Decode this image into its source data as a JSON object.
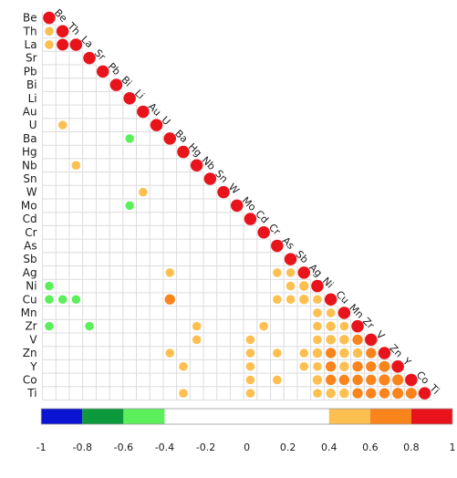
{
  "chart_data": {
    "type": "heatmap",
    "subtype": "correlogram-lower-triangle",
    "title": "",
    "variables": [
      "Be",
      "Th",
      "La",
      "Sr",
      "Pb",
      "Bi",
      "Li",
      "Au",
      "U",
      "Ba",
      "Hg",
      "Nb",
      "Sn",
      "W",
      "Mo",
      "Cd",
      "Cr",
      "As",
      "Sb",
      "Ag",
      "Ni",
      "Cu",
      "Mn",
      "Zr",
      "V",
      "Zn",
      "Y",
      "Co",
      "Ti"
    ],
    "correlations": [
      {
        "row": "Th",
        "col": "Be",
        "r": 0.5
      },
      {
        "row": "La",
        "col": "Be",
        "r": 0.5
      },
      {
        "row": "La",
        "col": "Th",
        "r": 0.9
      },
      {
        "row": "U",
        "col": "Th",
        "r": 0.5
      },
      {
        "row": "Ba",
        "col": "Li",
        "r": -0.5
      },
      {
        "row": "Nb",
        "col": "La",
        "r": 0.5
      },
      {
        "row": "W",
        "col": "Au",
        "r": 0.5
      },
      {
        "row": "Mo",
        "col": "Li",
        "r": -0.5
      },
      {
        "row": "Ag",
        "col": "Ba",
        "r": 0.5
      },
      {
        "row": "Ag",
        "col": "As",
        "r": 0.5
      },
      {
        "row": "Ag",
        "col": "Sb",
        "r": 0.5
      },
      {
        "row": "Ni",
        "col": "Be",
        "r": -0.5
      },
      {
        "row": "Ni",
        "col": "Sb",
        "r": 0.5
      },
      {
        "row": "Ni",
        "col": "Ag",
        "r": 0.6
      },
      {
        "row": "Cu",
        "col": "Be",
        "r": -0.5
      },
      {
        "row": "Cu",
        "col": "Th",
        "r": -0.5
      },
      {
        "row": "Cu",
        "col": "La",
        "r": -0.5
      },
      {
        "row": "Cu",
        "col": "Ba",
        "r": 0.7
      },
      {
        "row": "Cu",
        "col": "As",
        "r": 0.5
      },
      {
        "row": "Cu",
        "col": "Sb",
        "r": 0.5
      },
      {
        "row": "Cu",
        "col": "Ag",
        "r": 0.6
      },
      {
        "row": "Cu",
        "col": "Ni",
        "r": 0.5
      },
      {
        "row": "Mn",
        "col": "Ni",
        "r": 0.5
      },
      {
        "row": "Mn",
        "col": "Cu",
        "r": 0.5
      },
      {
        "row": "Zr",
        "col": "Be",
        "r": -0.5
      },
      {
        "row": "Zr",
        "col": "Sr",
        "r": -0.5
      },
      {
        "row": "Zr",
        "col": "Nb",
        "r": 0.5
      },
      {
        "row": "Zr",
        "col": "Cr",
        "r": 0.5
      },
      {
        "row": "Zr",
        "col": "Ni",
        "r": 0.5
      },
      {
        "row": "Zr",
        "col": "Cu",
        "r": 0.6
      },
      {
        "row": "Zr",
        "col": "Mn",
        "r": 0.5
      },
      {
        "row": "V",
        "col": "Nb",
        "r": 0.5
      },
      {
        "row": "V",
        "col": "Cd",
        "r": 0.5
      },
      {
        "row": "V",
        "col": "Ni",
        "r": 0.5
      },
      {
        "row": "V",
        "col": "Cu",
        "r": 0.6
      },
      {
        "row": "V",
        "col": "Mn",
        "r": 0.6
      },
      {
        "row": "V",
        "col": "Zr",
        "r": 0.7
      },
      {
        "row": "Zn",
        "col": "Ba",
        "r": 0.5
      },
      {
        "row": "Zn",
        "col": "Cd",
        "r": 0.5
      },
      {
        "row": "Zn",
        "col": "As",
        "r": 0.5
      },
      {
        "row": "Zn",
        "col": "Ag",
        "r": 0.5
      },
      {
        "row": "Zn",
        "col": "Ni",
        "r": 0.6
      },
      {
        "row": "Zn",
        "col": "Cu",
        "r": 0.7
      },
      {
        "row": "Zn",
        "col": "Mn",
        "r": 0.6
      },
      {
        "row": "Zn",
        "col": "Zr",
        "r": 0.6
      },
      {
        "row": "Zn",
        "col": "V",
        "r": 0.7
      },
      {
        "row": "Y",
        "col": "Hg",
        "r": 0.5
      },
      {
        "row": "Y",
        "col": "Cd",
        "r": 0.5
      },
      {
        "row": "Y",
        "col": "Ag",
        "r": 0.5
      },
      {
        "row": "Y",
        "col": "Ni",
        "r": 0.5
      },
      {
        "row": "Y",
        "col": "Cu",
        "r": 0.7
      },
      {
        "row": "Y",
        "col": "Mn",
        "r": 0.6
      },
      {
        "row": "Y",
        "col": "Zr",
        "r": 0.7
      },
      {
        "row": "Y",
        "col": "V",
        "r": 0.7
      },
      {
        "row": "Y",
        "col": "Zn",
        "r": 0.8
      },
      {
        "row": "Co",
        "col": "Cd",
        "r": 0.5
      },
      {
        "row": "Co",
        "col": "As",
        "r": 0.5
      },
      {
        "row": "Co",
        "col": "Ni",
        "r": 0.6
      },
      {
        "row": "Co",
        "col": "Cu",
        "r": 0.7
      },
      {
        "row": "Co",
        "col": "Mn",
        "r": 0.7
      },
      {
        "row": "Co",
        "col": "Zr",
        "r": 0.7
      },
      {
        "row": "Co",
        "col": "V",
        "r": 0.7
      },
      {
        "row": "Co",
        "col": "Zn",
        "r": 0.8
      },
      {
        "row": "Co",
        "col": "Y",
        "r": 0.8
      },
      {
        "row": "Ti",
        "col": "Hg",
        "r": 0.5
      },
      {
        "row": "Ti",
        "col": "Cd",
        "r": 0.5
      },
      {
        "row": "Ti",
        "col": "Ni",
        "r": 0.5
      },
      {
        "row": "Ti",
        "col": "Cu",
        "r": 0.6
      },
      {
        "row": "Ti",
        "col": "Mn",
        "r": 0.6
      },
      {
        "row": "Ti",
        "col": "Zr",
        "r": 0.7
      },
      {
        "row": "Ti",
        "col": "V",
        "r": 0.7
      },
      {
        "row": "Ti",
        "col": "Zn",
        "r": 0.7
      },
      {
        "row": "Ti",
        "col": "Y",
        "r": 0.8
      },
      {
        "row": "Ti",
        "col": "Co",
        "r": 0.8
      }
    ],
    "diagonal_r": 1,
    "colorbar": {
      "range": [
        -1,
        1
      ],
      "tick_labels": [
        "-1",
        "-0.8",
        "-0.6",
        "-0.4",
        "-0.2",
        "0",
        "0.2",
        "0.4",
        "0.6",
        "0.8",
        "1"
      ],
      "segments": [
        {
          "from": -1.0,
          "to": -0.8,
          "color": "#0a14d2"
        },
        {
          "from": -0.8,
          "to": -0.6,
          "color": "#0d9a3c"
        },
        {
          "from": -0.6,
          "to": -0.4,
          "color": "#5cef5c"
        },
        {
          "from": -0.4,
          "to": 0.4,
          "color": "#ffffff"
        },
        {
          "from": 0.4,
          "to": 0.6,
          "color": "#fdbf4f"
        },
        {
          "from": 0.6,
          "to": 0.8,
          "color": "#f9841c"
        },
        {
          "from": 0.8,
          "to": 1.0,
          "color": "#e8131b"
        }
      ]
    },
    "grid": true,
    "legend": "bottom"
  }
}
